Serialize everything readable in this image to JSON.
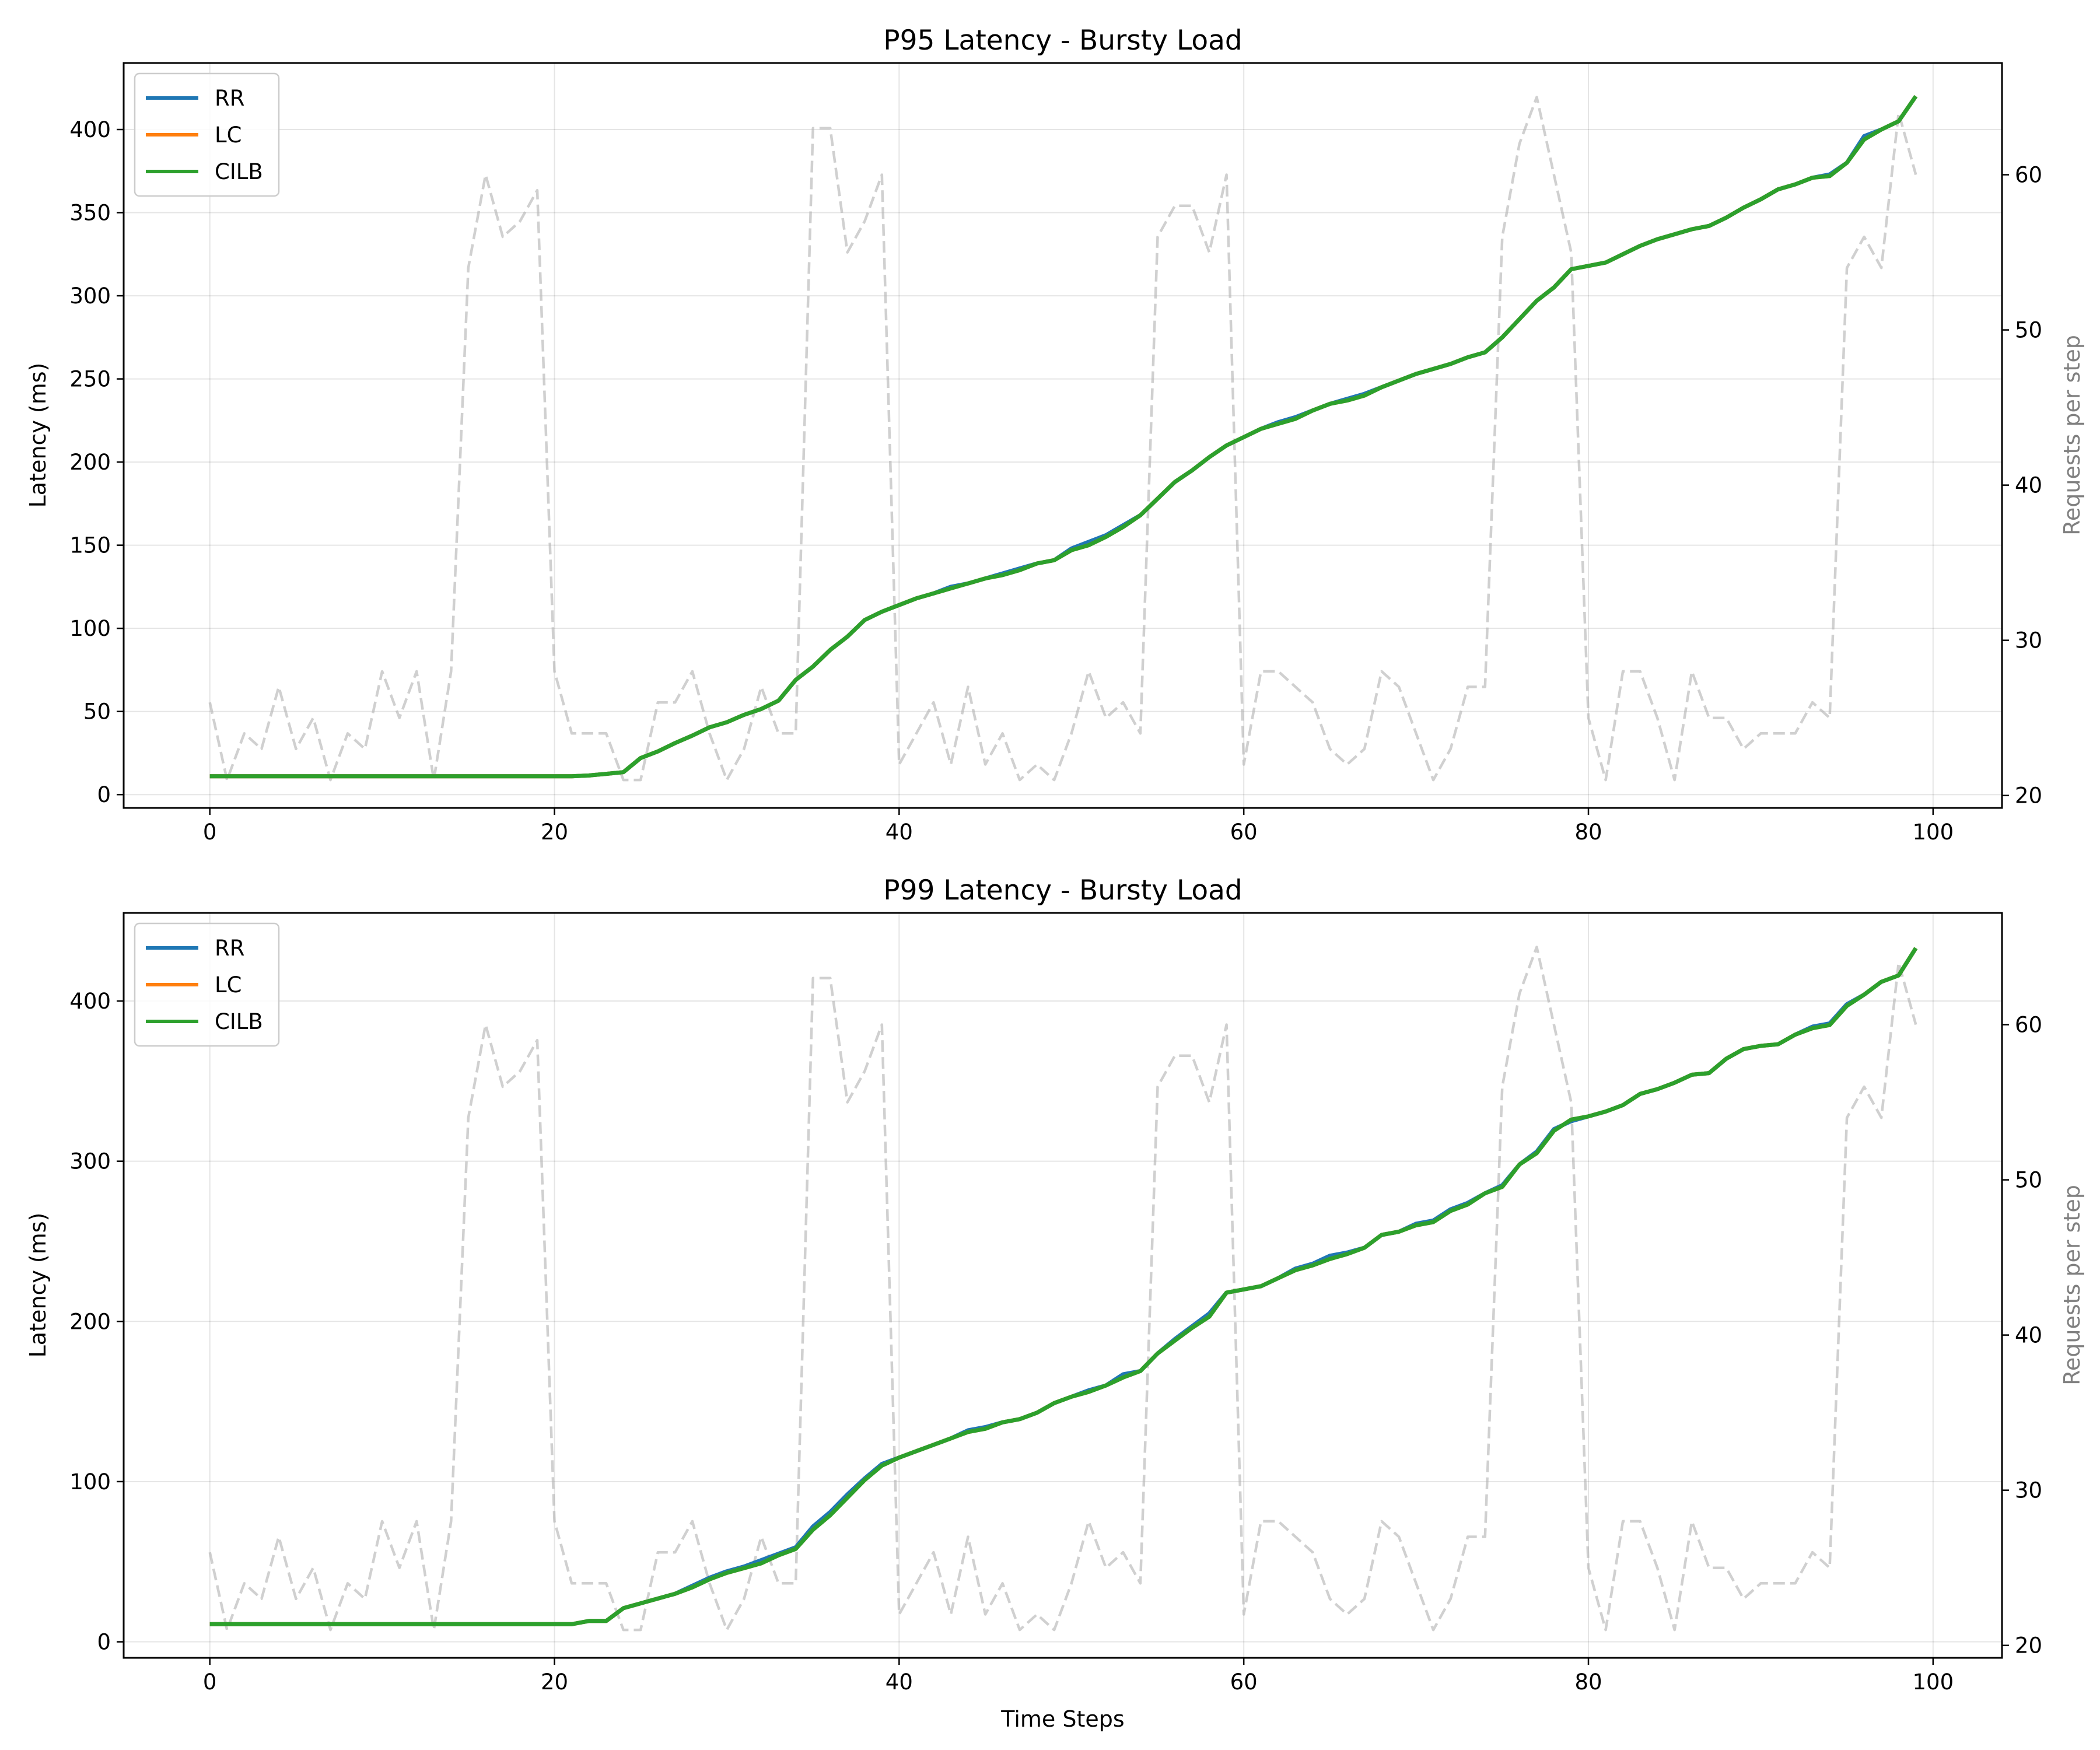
{
  "chart_data": [
    {
      "type": "line",
      "title": "P95 Latency - Bursty Load",
      "xlabel": "",
      "ylabel": "Latency (ms)",
      "y2label": "Requests per step",
      "xlim": [
        -5,
        104
      ],
      "ylim": [
        -8,
        440
      ],
      "y2lim": [
        19.2,
        67.2
      ],
      "xticks": [
        0,
        20,
        40,
        60,
        80,
        100
      ],
      "yticks": [
        0,
        50,
        100,
        150,
        200,
        250,
        300,
        350,
        400
      ],
      "y2ticks": [
        20,
        30,
        40,
        50,
        60
      ],
      "grid": true,
      "legend": "top-left",
      "x": [
        0,
        1,
        2,
        3,
        4,
        5,
        6,
        7,
        8,
        9,
        10,
        11,
        12,
        13,
        14,
        15,
        16,
        17,
        18,
        19,
        20,
        21,
        22,
        23,
        24,
        25,
        26,
        27,
        28,
        29,
        30,
        31,
        32,
        33,
        34,
        35,
        36,
        37,
        38,
        39,
        40,
        41,
        42,
        43,
        44,
        45,
        46,
        47,
        48,
        49,
        50,
        51,
        52,
        53,
        54,
        55,
        56,
        57,
        58,
        59,
        60,
        61,
        62,
        63,
        64,
        65,
        66,
        67,
        68,
        69,
        70,
        71,
        72,
        73,
        74,
        75,
        76,
        77,
        78,
        79,
        80,
        81,
        82,
        83,
        84,
        85,
        86,
        87,
        88,
        89,
        90,
        91,
        92,
        93,
        94,
        95,
        96,
        97,
        98,
        99
      ],
      "series": [
        {
          "name": "RR",
          "color": "#1f77b4",
          "axis": "left",
          "values": [
            11,
            11,
            11,
            11,
            11,
            11,
            11,
            11,
            11,
            11,
            11,
            11,
            11,
            11,
            11,
            11,
            11,
            11,
            11,
            11,
            11,
            11,
            11.5,
            12.5,
            13.5,
            22,
            26,
            31,
            35.5,
            40.5,
            43.5,
            48,
            51.5,
            56.5,
            69,
            77,
            87,
            95,
            105,
            110,
            114,
            118,
            121,
            125,
            127,
            130,
            133,
            136,
            139,
            141,
            148,
            152,
            156,
            162,
            168,
            178,
            188,
            195,
            203,
            210,
            215,
            220,
            224,
            227,
            231,
            235,
            238,
            241,
            245,
            249,
            253,
            256,
            259,
            263,
            266,
            275,
            286,
            297,
            305,
            316,
            318,
            320,
            325,
            330,
            334,
            337,
            340,
            342,
            347,
            353,
            358,
            364,
            367,
            371,
            373,
            380,
            396,
            400,
            405,
            420
          ]
        },
        {
          "name": "LC",
          "color": "#ff7f0e",
          "axis": "left",
          "values": [
            11,
            11,
            11,
            11,
            11,
            11,
            11,
            11,
            11,
            11,
            11,
            11,
            11,
            11,
            11,
            11,
            11,
            11,
            11,
            11,
            11,
            11,
            11.5,
            12.5,
            13.5,
            22,
            26,
            31,
            35.5,
            40.5,
            43.5,
            48,
            51.5,
            56.5,
            69,
            77,
            87,
            95,
            105,
            110,
            114,
            118,
            121,
            124,
            127,
            130,
            132,
            135,
            139,
            141,
            147,
            150,
            155,
            161,
            168,
            178,
            188,
            195,
            203,
            210,
            215,
            220,
            223,
            226,
            231,
            235,
            237,
            240,
            245,
            249,
            253,
            256,
            259,
            263,
            266,
            275,
            286,
            297,
            305,
            316,
            318,
            320,
            325,
            330,
            334,
            337,
            340,
            342,
            347,
            353,
            358,
            364,
            367,
            371,
            372,
            380,
            394,
            400,
            405,
            420
          ]
        },
        {
          "name": "CILB",
          "color": "#2ca02c",
          "axis": "left",
          "values": [
            11,
            11,
            11,
            11,
            11,
            11,
            11,
            11,
            11,
            11,
            11,
            11,
            11,
            11,
            11,
            11,
            11,
            11,
            11,
            11,
            11,
            11,
            11.5,
            12.5,
            13.5,
            22,
            26,
            31,
            35.5,
            40.5,
            43.5,
            48,
            51.5,
            56.5,
            69,
            77,
            87,
            95,
            105,
            110,
            114,
            118,
            121,
            124,
            127,
            130,
            132,
            135,
            139,
            141,
            147,
            150,
            155,
            161,
            168,
            178,
            188,
            195,
            203,
            210,
            215,
            220,
            223,
            226,
            231,
            235,
            237,
            240,
            245,
            249,
            253,
            256,
            259,
            263,
            266,
            275,
            286,
            297,
            305,
            316,
            318,
            320,
            325,
            330,
            334,
            337,
            340,
            342,
            347,
            353,
            358,
            364,
            367,
            371,
            372,
            380,
            394,
            400,
            405,
            420
          ]
        },
        {
          "name": "",
          "color": "#b0b0b0",
          "axis": "right",
          "style": "dashed",
          "values": [
            26,
            21,
            24,
            23,
            27,
            23,
            25,
            21,
            24,
            23,
            28,
            25,
            28,
            21,
            28,
            54,
            60,
            56,
            57,
            59,
            28,
            24,
            24,
            24,
            21,
            21,
            26,
            26,
            28,
            24,
            21,
            23,
            27,
            24,
            24,
            63,
            63,
            55,
            57,
            60,
            22,
            24,
            26,
            22,
            27,
            22,
            24,
            21,
            22,
            21,
            24,
            28,
            25,
            26,
            24,
            56,
            58,
            58,
            55,
            60,
            22,
            28,
            28,
            27,
            26,
            23,
            22,
            23,
            28,
            27,
            24,
            21,
            23,
            27,
            27,
            56,
            62,
            65,
            60,
            55,
            25,
            21,
            28,
            28,
            25,
            21,
            28,
            25,
            25,
            23,
            24,
            24,
            24,
            26,
            25,
            54,
            56,
            54,
            64,
            60
          ]
        }
      ]
    },
    {
      "type": "line",
      "title": "P99 Latency - Bursty Load",
      "xlabel": "Time Steps",
      "ylabel": "Latency (ms)",
      "y2label": "Requests per step",
      "xlim": [
        -5,
        104
      ],
      "ylim": [
        -10,
        455
      ],
      "y2lim": [
        19.2,
        67.2
      ],
      "xticks": [
        0,
        20,
        40,
        60,
        80,
        100
      ],
      "yticks": [
        0,
        100,
        200,
        300,
        400
      ],
      "y2ticks": [
        20,
        30,
        40,
        50,
        60
      ],
      "grid": true,
      "legend": "top-left",
      "x": [
        0,
        1,
        2,
        3,
        4,
        5,
        6,
        7,
        8,
        9,
        10,
        11,
        12,
        13,
        14,
        15,
        16,
        17,
        18,
        19,
        20,
        21,
        22,
        23,
        24,
        25,
        26,
        27,
        28,
        29,
        30,
        31,
        32,
        33,
        34,
        35,
        36,
        37,
        38,
        39,
        40,
        41,
        42,
        43,
        44,
        45,
        46,
        47,
        48,
        49,
        50,
        51,
        52,
        53,
        54,
        55,
        56,
        57,
        58,
        59,
        60,
        61,
        62,
        63,
        64,
        65,
        66,
        67,
        68,
        69,
        70,
        71,
        72,
        73,
        74,
        75,
        76,
        77,
        78,
        79,
        80,
        81,
        82,
        83,
        84,
        85,
        86,
        87,
        88,
        89,
        90,
        91,
        92,
        93,
        94,
        95,
        96,
        97,
        98,
        99
      ],
      "series": [
        {
          "name": "RR",
          "color": "#1f77b4",
          "axis": "left",
          "values": [
            11,
            11,
            11,
            11,
            11,
            11,
            11,
            11,
            11,
            11,
            11,
            11,
            11,
            11,
            11,
            11,
            11,
            11,
            11,
            11,
            11,
            11,
            13,
            13,
            21,
            24,
            27,
            30,
            35,
            40,
            44,
            47,
            51,
            55,
            59,
            72,
            81,
            92,
            102,
            111,
            115,
            119,
            123,
            127,
            132,
            134,
            137,
            139,
            143,
            149,
            153,
            157,
            160,
            167,
            169,
            180,
            189,
            197,
            205,
            218,
            220,
            222,
            227,
            233,
            236,
            241,
            243,
            246,
            254,
            256,
            261,
            263,
            270,
            274,
            280,
            285,
            298,
            306,
            320,
            325,
            328,
            331,
            335,
            342,
            345,
            349,
            354,
            355,
            364,
            370,
            372,
            373,
            379,
            384,
            386,
            398,
            404,
            412,
            416,
            433
          ]
        },
        {
          "name": "LC",
          "color": "#ff7f0e",
          "axis": "left",
          "values": [
            11,
            11,
            11,
            11,
            11,
            11,
            11,
            11,
            11,
            11,
            11,
            11,
            11,
            11,
            11,
            11,
            11,
            11,
            11,
            11,
            11,
            11,
            13,
            13,
            21,
            24,
            27,
            30,
            34,
            39,
            43,
            46,
            49,
            54,
            58,
            70,
            79,
            90,
            101,
            110,
            115,
            119,
            123,
            127,
            131,
            133,
            137,
            139,
            143,
            149,
            153,
            156,
            160,
            165,
            169,
            180,
            188,
            196,
            203,
            218,
            220,
            222,
            227,
            232,
            235,
            239,
            242,
            246,
            254,
            256,
            260,
            262,
            269,
            273,
            280,
            284,
            298,
            305,
            319,
            326,
            328,
            331,
            335,
            342,
            345,
            349,
            354,
            355,
            364,
            370,
            372,
            373,
            379,
            383,
            385,
            397,
            404,
            412,
            416,
            433
          ]
        },
        {
          "name": "CILB",
          "color": "#2ca02c",
          "axis": "left",
          "values": [
            11,
            11,
            11,
            11,
            11,
            11,
            11,
            11,
            11,
            11,
            11,
            11,
            11,
            11,
            11,
            11,
            11,
            11,
            11,
            11,
            11,
            11,
            13,
            13,
            21,
            24,
            27,
            30,
            34,
            39,
            43,
            46,
            49,
            54,
            58,
            70,
            79,
            90,
            101,
            110,
            115,
            119,
            123,
            127,
            131,
            133,
            137,
            139,
            143,
            149,
            153,
            156,
            160,
            165,
            169,
            180,
            188,
            196,
            203,
            218,
            220,
            222,
            227,
            232,
            235,
            239,
            242,
            246,
            254,
            256,
            260,
            262,
            269,
            273,
            280,
            284,
            298,
            305,
            319,
            326,
            328,
            331,
            335,
            342,
            345,
            349,
            354,
            355,
            364,
            370,
            372,
            373,
            379,
            383,
            385,
            397,
            404,
            412,
            416,
            433
          ]
        },
        {
          "name": "",
          "color": "#b0b0b0",
          "axis": "right",
          "style": "dashed",
          "values": [
            26,
            21,
            24,
            23,
            27,
            23,
            25,
            21,
            24,
            23,
            28,
            25,
            28,
            21,
            28,
            54,
            60,
            56,
            57,
            59,
            28,
            24,
            24,
            24,
            21,
            21,
            26,
            26,
            28,
            24,
            21,
            23,
            27,
            24,
            24,
            63,
            63,
            55,
            57,
            60,
            22,
            24,
            26,
            22,
            27,
            22,
            24,
            21,
            22,
            21,
            24,
            28,
            25,
            26,
            24,
            56,
            58,
            58,
            55,
            60,
            22,
            28,
            28,
            27,
            26,
            23,
            22,
            23,
            28,
            27,
            24,
            21,
            23,
            27,
            27,
            56,
            62,
            65,
            60,
            55,
            25,
            21,
            28,
            28,
            25,
            21,
            28,
            25,
            25,
            23,
            24,
            24,
            24,
            26,
            25,
            54,
            56,
            54,
            64,
            60
          ]
        }
      ]
    }
  ]
}
